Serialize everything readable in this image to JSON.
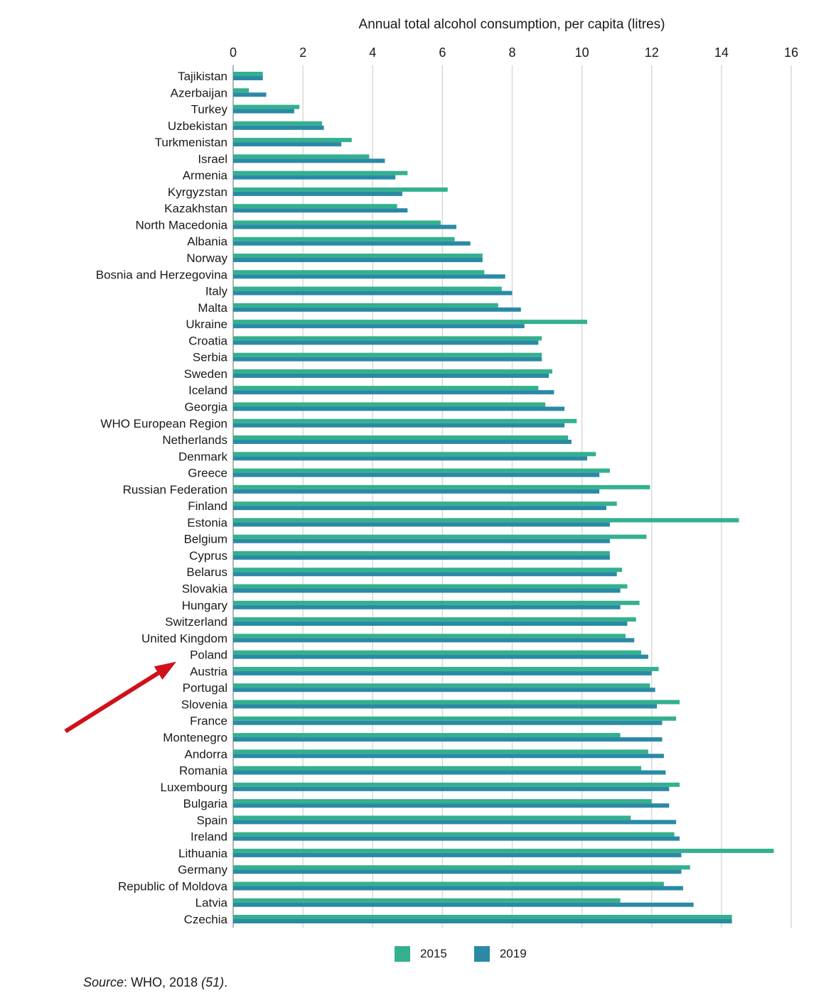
{
  "chart_data": {
    "type": "bar",
    "orientation": "horizontal",
    "xlabel": "Annual total alcohol consumption, per capita (litres)",
    "xlim": [
      0,
      16
    ],
    "xticks": [
      0,
      2,
      4,
      6,
      8,
      10,
      12,
      14,
      16
    ],
    "grid": true,
    "legend_position": "bottom",
    "categories": [
      "Tajikistan",
      "Azerbaijan",
      "Turkey",
      "Uzbekistan",
      "Turkmenistan",
      "Israel",
      "Armenia",
      "Kyrgyzstan",
      "Kazakhstan",
      "North Macedonia",
      "Albania",
      "Norway",
      "Bosnia and Herzegovina",
      "Italy",
      "Malta",
      "Ukraine",
      "Croatia",
      "Serbia",
      "Sweden",
      "Iceland",
      "Georgia",
      "WHO European Region",
      "Netherlands",
      "Denmark",
      "Greece",
      "Russian Federation",
      "Finland",
      "Estonia",
      "Belgium",
      "Cyprus",
      "Belarus",
      "Slovakia",
      "Hungary",
      "Switzerland",
      "United Kingdom",
      "Poland",
      "Austria",
      "Portugal",
      "Slovenia",
      "France",
      "Montenegro",
      "Andorra",
      "Romania",
      "Luxembourg",
      "Bulgaria",
      "Spain",
      "Ireland",
      "Lithuania",
      "Germany",
      "Republic of Moldova",
      "Latvia",
      "Czechia"
    ],
    "series": [
      {
        "name": "2015",
        "color": "#34b08f",
        "values": [
          0.85,
          0.45,
          1.9,
          2.55,
          3.4,
          3.9,
          5.0,
          6.15,
          4.7,
          5.95,
          6.35,
          7.15,
          7.2,
          7.7,
          7.6,
          10.15,
          8.85,
          8.85,
          9.15,
          8.75,
          8.95,
          9.85,
          9.6,
          10.4,
          10.8,
          11.95,
          11.0,
          14.5,
          11.85,
          10.8,
          11.15,
          11.3,
          11.65,
          11.55,
          11.25,
          11.7,
          12.2,
          11.95,
          12.8,
          12.7,
          11.1,
          11.9,
          11.7,
          12.8,
          12.0,
          11.4,
          12.65,
          15.5,
          13.1,
          12.35,
          11.1,
          14.3
        ]
      },
      {
        "name": "2019",
        "color": "#2a8aa5",
        "values": [
          0.85,
          0.95,
          1.75,
          2.6,
          3.1,
          4.35,
          4.65,
          4.85,
          5.0,
          6.4,
          6.8,
          7.15,
          7.8,
          8.0,
          8.25,
          8.35,
          8.75,
          8.85,
          9.05,
          9.2,
          9.5,
          9.5,
          9.7,
          10.15,
          10.5,
          10.5,
          10.7,
          10.8,
          10.8,
          10.8,
          11.0,
          11.1,
          11.1,
          11.3,
          11.5,
          11.9,
          12.0,
          12.1,
          12.15,
          12.3,
          12.3,
          12.35,
          12.4,
          12.5,
          12.5,
          12.7,
          12.8,
          12.85,
          12.85,
          12.9,
          13.2,
          14.3
        ]
      }
    ]
  },
  "legend": {
    "items": [
      {
        "label": "2015",
        "color": "#34b08f"
      },
      {
        "label": "2019",
        "color": "#2a8aa5"
      }
    ]
  },
  "source": {
    "label": "Source",
    "sep": ": ",
    "text": "WHO, 2018 ",
    "ref": "(51)",
    "end": "."
  },
  "annotation": {
    "arrow_target": "Poland",
    "arrow_color": "#d0101a"
  }
}
